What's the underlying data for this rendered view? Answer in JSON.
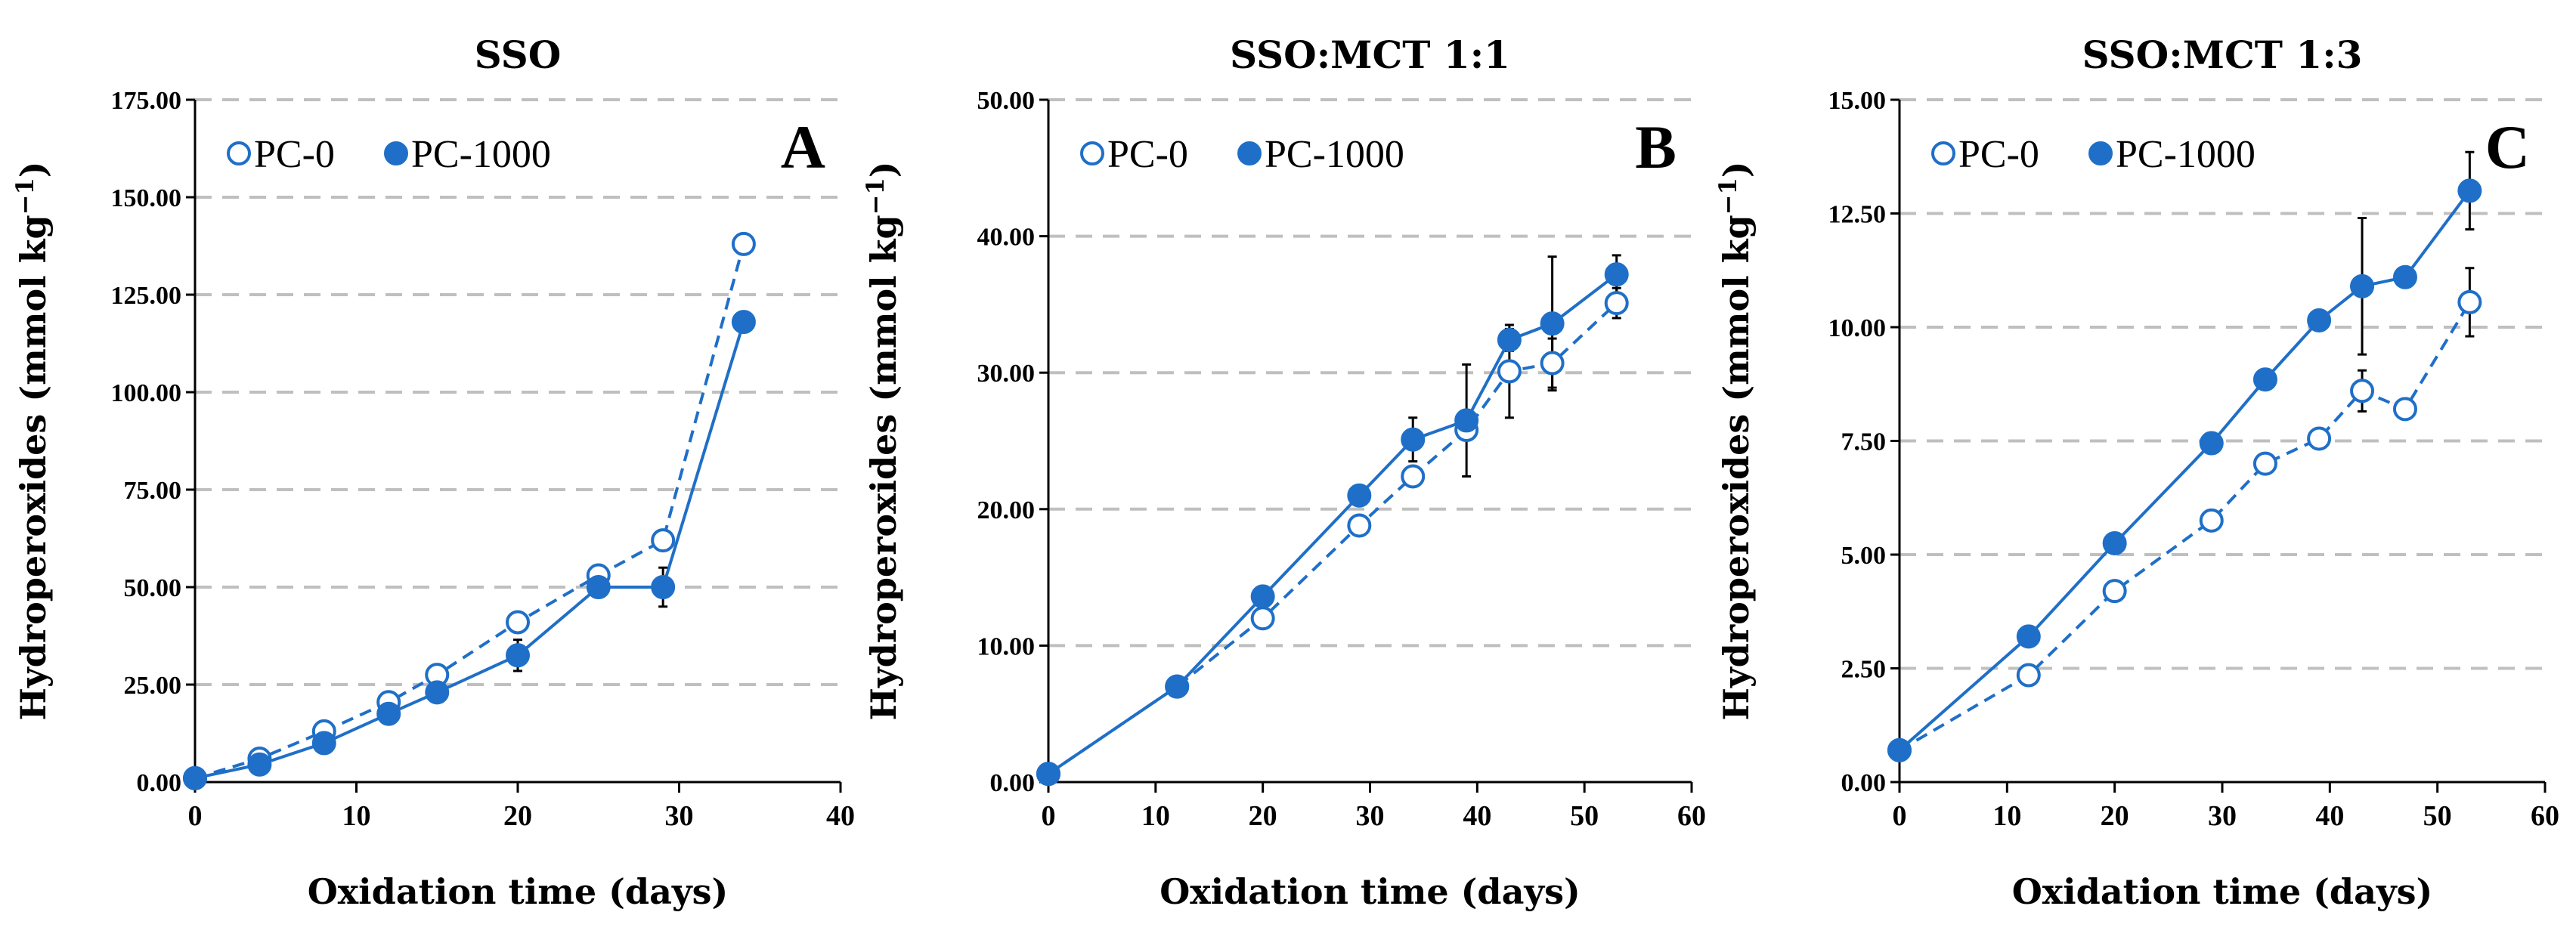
{
  "chart_data": [
    {
      "type": "line",
      "title": "SSO",
      "panel_letter": "A",
      "xlabel": "Oxidation time (days)",
      "ylabel": "Hydroperoxides (mmol kg",
      "ylabel_sup": "−1",
      "ylabel_close": ")",
      "xlim": [
        0,
        40
      ],
      "ylim": [
        0,
        175
      ],
      "xticks": [
        0,
        10,
        20,
        30,
        40
      ],
      "yticks": [
        0,
        25,
        50,
        75,
        100,
        125,
        150,
        175
      ],
      "ytick_labels": [
        "0.00",
        "25.00",
        "50.00",
        "75.00",
        "100.00",
        "125.00",
        "150.00",
        "175.00"
      ],
      "grid": "horizontal dashed",
      "legend_position": "top-left",
      "series": [
        {
          "name": "PC-0",
          "style": "dashed",
          "marker": "open-circle",
          "x": [
            0,
            4,
            8,
            12,
            15,
            20,
            25,
            29,
            34
          ],
          "y": [
            1,
            6,
            13,
            20.5,
            27.5,
            41,
            53,
            62,
            138
          ],
          "err": [
            0,
            0,
            0,
            0,
            0,
            0,
            0,
            0,
            0
          ]
        },
        {
          "name": "PC-1000",
          "style": "solid",
          "marker": "filled-circle",
          "x": [
            0,
            4,
            8,
            12,
            15,
            20,
            25,
            29,
            34
          ],
          "y": [
            1,
            4.5,
            10,
            17.5,
            23,
            32.5,
            50,
            50,
            118
          ],
          "err": [
            0,
            0,
            0,
            0,
            0,
            4,
            0,
            5,
            0
          ]
        }
      ]
    },
    {
      "type": "line",
      "title": "SSO:MCT 1:1",
      "panel_letter": "B",
      "xlabel": "Oxidation time (days)",
      "ylabel": "Hydroperoxides (mmol kg",
      "ylabel_sup": "−1",
      "ylabel_close": ")",
      "xlim": [
        0,
        60
      ],
      "ylim": [
        0,
        50
      ],
      "xticks": [
        0,
        10,
        20,
        30,
        40,
        50,
        60
      ],
      "yticks": [
        0,
        10,
        20,
        30,
        40,
        50
      ],
      "ytick_labels": [
        "0.00",
        "10.00",
        "20.00",
        "30.00",
        "40.00",
        "50.00"
      ],
      "grid": "horizontal dashed",
      "legend_position": "top-left",
      "series": [
        {
          "name": "PC-0",
          "style": "dashed",
          "marker": "open-circle",
          "x": [
            0,
            12,
            20,
            29,
            34,
            39,
            43,
            47,
            53
          ],
          "y": [
            0.6,
            7,
            12,
            18.8,
            22.4,
            25.8,
            30.1,
            30.7,
            35.1
          ],
          "err": [
            0,
            0,
            0,
            0,
            0,
            0,
            3.4,
            1.8,
            1.1
          ]
        },
        {
          "name": "PC-1000",
          "style": "solid",
          "marker": "filled-circle",
          "x": [
            0,
            12,
            20,
            29,
            34,
            39,
            43,
            47,
            53
          ],
          "y": [
            0.6,
            7,
            13.6,
            21,
            25.1,
            26.5,
            32.4,
            33.6,
            37.2
          ],
          "err": [
            0,
            0,
            0,
            0,
            1.6,
            4.1,
            0.8,
            4.9,
            1.4
          ]
        }
      ]
    },
    {
      "type": "line",
      "title": "SSO:MCT 1:3",
      "panel_letter": "C",
      "xlabel": "Oxidation time (days)",
      "ylabel": "Hydroperoxides (mmol kg",
      "ylabel_sup": "−1",
      "ylabel_close": ")",
      "xlim": [
        0,
        60
      ],
      "ylim": [
        0,
        15
      ],
      "xticks": [
        0,
        10,
        20,
        30,
        40,
        50,
        60
      ],
      "yticks": [
        0,
        2.5,
        5,
        7.5,
        10,
        12.5,
        15
      ],
      "ytick_labels": [
        "0.00",
        "2.50",
        "5.00",
        "7.50",
        "10.00",
        "12.50",
        "15.00"
      ],
      "grid": "horizontal dashed",
      "legend_position": "top-left",
      "series": [
        {
          "name": "PC-0",
          "style": "dashed",
          "marker": "open-circle",
          "x": [
            0,
            12,
            20,
            29,
            34,
            39,
            43,
            47,
            53
          ],
          "y": [
            0.7,
            2.35,
            4.2,
            5.75,
            7,
            7.55,
            8.6,
            8.2,
            10.55
          ],
          "err": [
            0,
            0,
            0,
            0,
            0,
            0,
            0.45,
            0,
            0.75
          ]
        },
        {
          "name": "PC-1000",
          "style": "solid",
          "marker": "filled-circle",
          "x": [
            0,
            12,
            20,
            29,
            34,
            39,
            43,
            47,
            53
          ],
          "y": [
            0.7,
            3.2,
            5.25,
            7.45,
            8.85,
            10.15,
            10.9,
            11.1,
            13
          ],
          "err": [
            0,
            0,
            0,
            0,
            0,
            0,
            1.5,
            0,
            0.85
          ]
        }
      ]
    }
  ],
  "colors": {
    "series": "#1f6fc8",
    "grid": "#bfbfbf",
    "axis": "#000000",
    "error_bar": "#000000"
  }
}
